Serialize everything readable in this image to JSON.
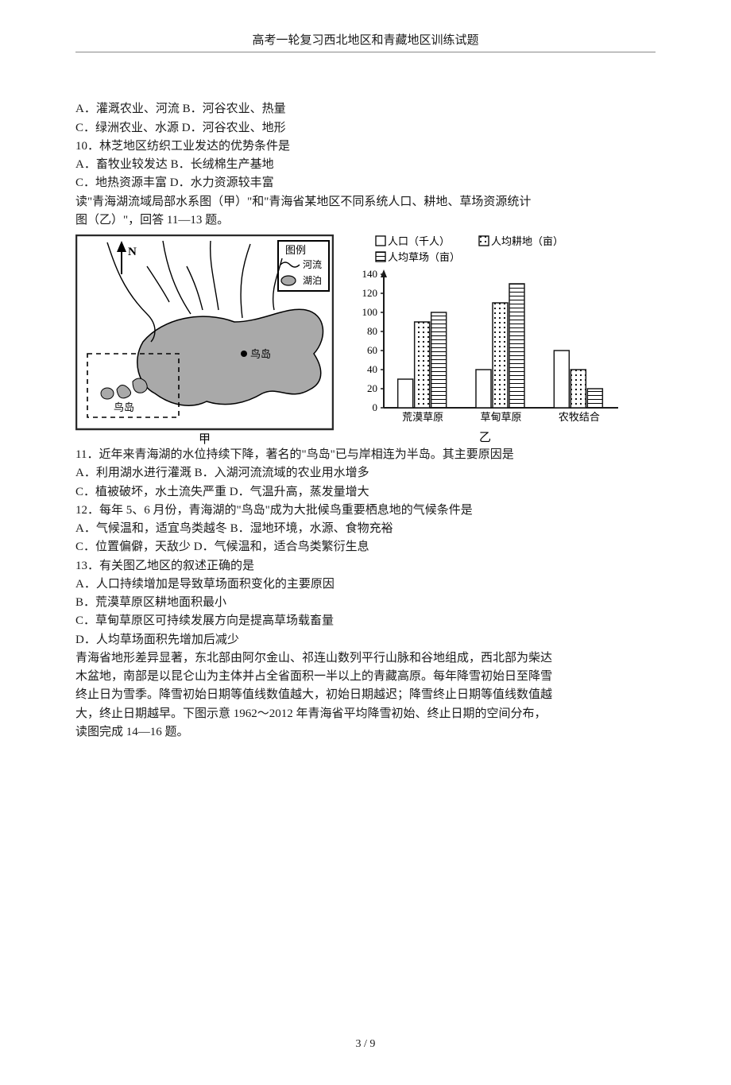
{
  "running_head": "高考一轮复习西北地区和青藏地区训练试题",
  "lines": {
    "l1": "A．灌溉农业、河流 B．河谷农业、热量",
    "l2": "C．绿洲农业、水源 D．河谷农业、地形",
    "l3": "10．林芝地区纺织工业发达的优势条件是",
    "l4": "A．畜牧业较发达 B．长绒棉生产基地",
    "l5": "C．地热资源丰富 D．水力资源较丰富",
    "l6": "读\"青海湖流域局部水系图（甲）\"和\"青海省某地区不同系统人口、耕地、草场资源统计",
    "l7": "图（乙）\"，回答 11—13 题。",
    "l8": "11．近年来青海湖的水位持续下降，著名的\"鸟岛\"已与岸相连为半岛。其主要原因是",
    "l9": "A．利用湖水进行灌溉 B．入湖河流流域的农业用水增多",
    "l10": "C．植被破坏，水土流失严重 D．气温升高，蒸发量增大",
    "l11": "12．每年 5、6 月份，青海湖的\"鸟岛\"成为大批候鸟重要栖息地的气候条件是",
    "l12": "A．气候温和，适宜鸟类越冬 B．湿地环境，水源、食物充裕",
    "l13": "C．位置偏僻，天敌少 D．气候温和，适合鸟类繁衍生息",
    "l14": "13．有关图乙地区的叙述正确的是",
    "l15": "A．人口持续增加是导致草场面积变化的主要原因",
    "l16": "B．荒漠草原区耕地面积最小",
    "l17": "C．草甸草原区可持续发展方向是提高草场载畜量",
    "l18": "D．人均草场面积先增加后减少",
    "l19": "青海省地形差异显著，东北部由阿尔金山、祁连山数列平行山脉和谷地组成，西北部为柴达",
    "l20": "木盆地，南部是以昆仑山为主体并占全省面积一半以上的青藏高原。每年降雪初始日至降雪",
    "l21": "终止日为雪季。降雪初始日期等值线数值越大，初始日期越迟；降雪终止日期等值线数值越",
    "l22": "大，终止日期越早。下图示意 1962～2012 年青海省平均降雪初始、终止日期的空间分布，",
    "l23": "读图完成 14—16 题。"
  },
  "map": {
    "legend_title": "图例",
    "legend_river": "河流",
    "legend_lake": "湖泊",
    "compass": "N",
    "island_a": "鸟岛",
    "island_b": "鸟岛",
    "caption": "甲",
    "border_color": "#2a2a2a",
    "water_color": "#a9a9a9"
  },
  "chart": {
    "legend": {
      "s1": "人口（千人）",
      "s2": "人均耕地（亩）",
      "s3": "人均草场（亩）"
    },
    "categories": [
      "荒漠草原",
      "草甸草原",
      "农牧结合"
    ],
    "series": {
      "population": [
        30,
        40,
        60
      ],
      "cropland": [
        90,
        110,
        40
      ],
      "pasture": [
        100,
        130,
        20
      ]
    },
    "ylim": 140,
    "ytick_step": 20,
    "caption": "乙",
    "axis_color": "#1a1a1a",
    "label_fontsize": 13,
    "bar_outline": "#1a1a1a",
    "bar_fill_plain": "#ffffff",
    "bar_fill_dots": "#ffffff",
    "bar_fill_hatch": "#ffffff"
  },
  "page_number": "3 / 9"
}
